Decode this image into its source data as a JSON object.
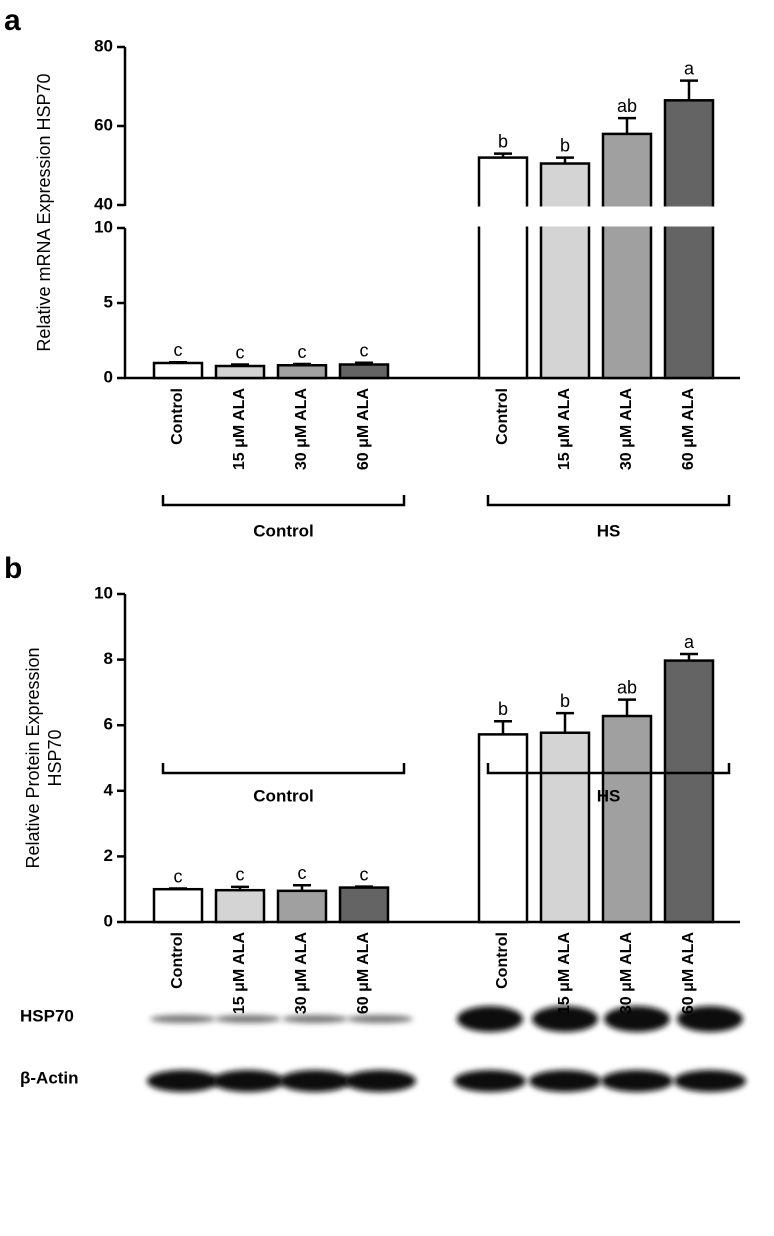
{
  "chart_data": [
    {
      "type": "bar",
      "panel": "a",
      "ylabel": [
        "Relative mRNA Expression HSP70"
      ],
      "categories": [
        "Control",
        "15 μM ALA",
        "30 μM ALA",
        "60 μM ALA",
        "Control",
        "15 μM ALA",
        "30 μM ALA",
        "60 μM ALA"
      ],
      "values": [
        1.0,
        0.8,
        0.85,
        0.9,
        52,
        50.5,
        58,
        66.5
      ],
      "errors": [
        0.05,
        0.1,
        0.08,
        0.12,
        1,
        1.5,
        4,
        5
      ],
      "letters": [
        "c",
        "c",
        "c",
        "c",
        "b",
        "b",
        "ab",
        "a"
      ],
      "colors": [
        "#ffffff",
        "#d4d4d4",
        "#a0a0a0",
        "#646464",
        "#ffffff",
        "#d4d4d4",
        "#a0a0a0",
        "#646464"
      ],
      "groups": [
        "Control",
        "HS"
      ],
      "segments": [
        {
          "ylim": [
            0,
            10
          ],
          "yticks": [
            0,
            5,
            10
          ]
        },
        {
          "ylim": [
            40,
            80
          ],
          "yticks": [
            40,
            60,
            80
          ]
        }
      ]
    },
    {
      "type": "bar",
      "panel": "b",
      "ylabel": [
        "Relative Protein Expression",
        "HSP70"
      ],
      "categories": [
        "Control",
        "15 μM ALA",
        "30 μM ALA",
        "60 μM ALA",
        "Control",
        "15 μM ALA",
        "30 μM ALA",
        "60 μM ALA"
      ],
      "values": [
        1.0,
        0.97,
        0.95,
        1.05,
        5.72,
        5.77,
        6.28,
        7.97
      ],
      "errors": [
        0.02,
        0.1,
        0.17,
        0.03,
        0.4,
        0.6,
        0.5,
        0.2
      ],
      "letters": [
        "c",
        "c",
        "c",
        "c",
        "b",
        "b",
        "ab",
        "a"
      ],
      "colors": [
        "#ffffff",
        "#d4d4d4",
        "#a0a0a0",
        "#646464",
        "#ffffff",
        "#d4d4d4",
        "#a0a0a0",
        "#646464"
      ],
      "groups": [
        "Control",
        "HS"
      ],
      "ylim": [
        0,
        10
      ],
      "yticks": [
        0,
        2,
        4,
        6,
        8,
        10
      ]
    }
  ],
  "blot": {
    "labels": [
      "HSP70",
      "β-Actin"
    ]
  }
}
